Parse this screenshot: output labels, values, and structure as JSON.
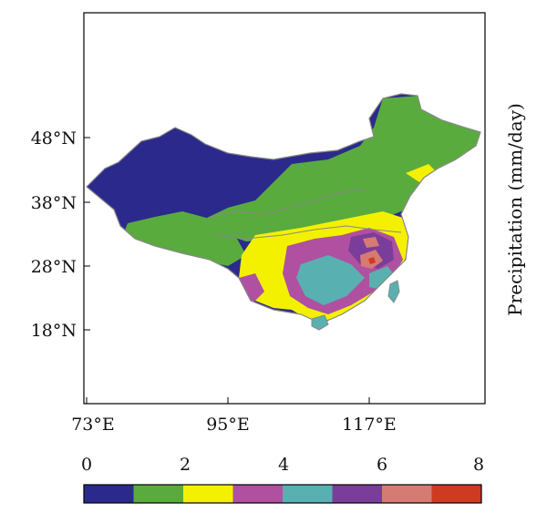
{
  "map": {
    "side_label": "Precipitation (mm/day)",
    "lat_labels": [
      "48°N",
      "38°N",
      "28°N",
      "18°N"
    ],
    "lon_labels": [
      "73°E",
      "95°E",
      "117°E"
    ]
  },
  "colorbar": {
    "tick_labels": [
      "0",
      "2",
      "4",
      "6",
      "8"
    ],
    "colors": [
      "#2b2a8c",
      "#5aab3e",
      "#f4f100",
      "#b050a0",
      "#58b1b0",
      "#7b3d9a",
      "#d67a74",
      "#cf3a22"
    ]
  },
  "colors": {
    "outline": "#888888",
    "frame": "#000000"
  }
}
